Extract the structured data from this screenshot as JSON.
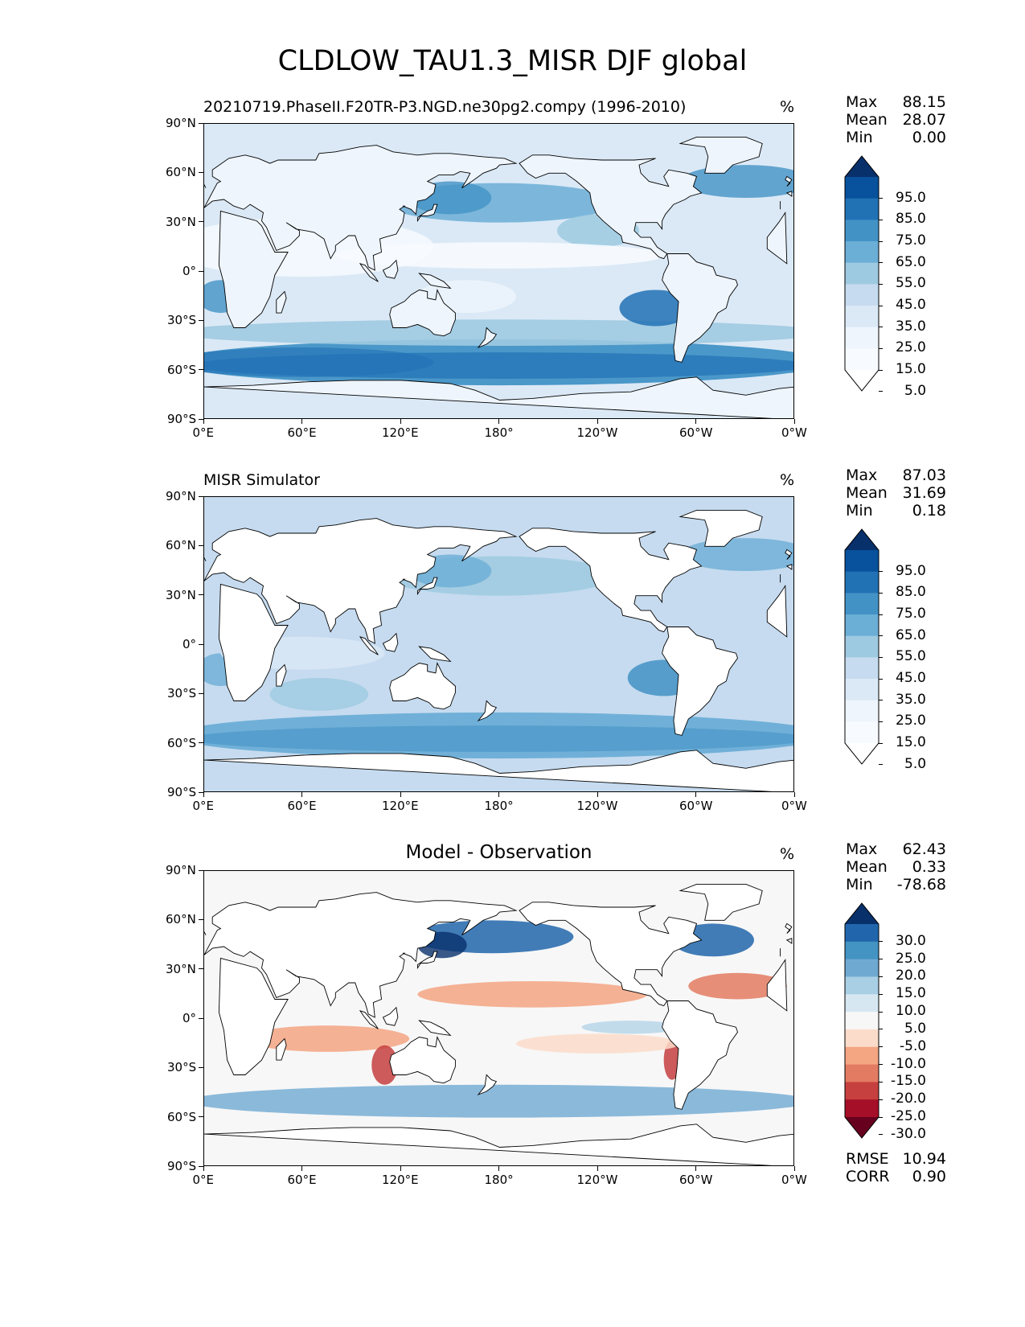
{
  "figure_title": "CLDLOW_TAU1.3_MISR DJF global",
  "panels": [
    {
      "id": "model",
      "title_left": "20210719.PhaseII.F20TR-P3.NGD.ne30pg2.compy (1996-2010)",
      "title_center": "",
      "units": "%",
      "stats": [
        {
          "label": "Max",
          "value": "88.15"
        },
        {
          "label": "Mean",
          "value": "28.07"
        },
        {
          "label": "Min",
          "value": "0.00"
        }
      ],
      "colorbar": {
        "ticks": [
          "95.0",
          "85.0",
          "75.0",
          "65.0",
          "55.0",
          "45.0",
          "35.0",
          "25.0",
          "15.0",
          "5.0"
        ],
        "colors": [
          "#08306b",
          "#08519c",
          "#2171b5",
          "#4292c6",
          "#6baed6",
          "#9ecae1",
          "#c6dbef",
          "#dbe9f6",
          "#eef5fc",
          "#f7fbff",
          "#ffffff"
        ]
      },
      "extra_stats": []
    },
    {
      "id": "obs",
      "title_left": "MISR Simulator",
      "title_center": "",
      "units": "%",
      "stats": [
        {
          "label": "Max",
          "value": "87.03"
        },
        {
          "label": "Mean",
          "value": "31.69"
        },
        {
          "label": "Min",
          "value": "0.18"
        }
      ],
      "colorbar": {
        "ticks": [
          "95.0",
          "85.0",
          "75.0",
          "65.0",
          "55.0",
          "45.0",
          "35.0",
          "25.0",
          "15.0",
          "5.0"
        ],
        "colors": [
          "#08306b",
          "#08519c",
          "#2171b5",
          "#4292c6",
          "#6baed6",
          "#9ecae1",
          "#c6dbef",
          "#dbe9f6",
          "#eef5fc",
          "#f7fbff",
          "#ffffff"
        ]
      },
      "extra_stats": []
    },
    {
      "id": "diff",
      "title_left": "",
      "title_center": "Model - Observation",
      "units": "%",
      "stats": [
        {
          "label": "Max",
          "value": "62.43"
        },
        {
          "label": "Mean",
          "value": "0.33"
        },
        {
          "label": "Min",
          "value": "-78.68"
        }
      ],
      "colorbar": {
        "ticks": [
          "30.0",
          "25.0",
          "20.0",
          "15.0",
          "10.0",
          "5.0",
          "-5.0",
          "-10.0",
          "-15.0",
          "-20.0",
          "-25.0",
          "-30.0"
        ],
        "colors": [
          "#08306b",
          "#2166ac",
          "#4393c3",
          "#6fa9d2",
          "#a9cfe5",
          "#d7e7f1",
          "#f7f7f7",
          "#fbdcca",
          "#f4a582",
          "#e37b62",
          "#c6403f",
          "#a50f27",
          "#67001f"
        ]
      },
      "extra_stats": [
        {
          "label": "RMSE",
          "value": "10.94"
        },
        {
          "label": "CORR",
          "value": "0.90"
        }
      ]
    }
  ],
  "axes": {
    "xticks": [
      "0°E",
      "60°E",
      "120°E",
      "180°",
      "120°W",
      "60°W",
      "0°W"
    ],
    "yticks": [
      "90°N",
      "60°N",
      "30°N",
      "0°",
      "30°S",
      "60°S",
      "90°S"
    ]
  },
  "chart_data": {
    "type": "heatmap",
    "title": "CLDLOW_TAU1.3_MISR DJF global",
    "projection": "PlateCarree",
    "x_range": [
      0,
      360
    ],
    "y_range": [
      -90,
      90
    ],
    "panels": [
      {
        "name": "20210719.PhaseII.F20TR-P3.NGD.ne30pg2.compy (1996-2010)",
        "units": "%",
        "max": 88.15,
        "mean": 28.07,
        "min": 0.0,
        "levels": [
          5,
          15,
          25,
          35,
          45,
          55,
          65,
          75,
          85,
          95
        ],
        "colormap": "Blues"
      },
      {
        "name": "MISR Simulator",
        "units": "%",
        "max": 87.03,
        "mean": 31.69,
        "min": 0.18,
        "levels": [
          5,
          15,
          25,
          35,
          45,
          55,
          65,
          75,
          85,
          95
        ],
        "colormap": "Blues"
      },
      {
        "name": "Model - Observation",
        "units": "%",
        "max": 62.43,
        "mean": 0.33,
        "min": -78.68,
        "levels": [
          -30,
          -25,
          -20,
          -15,
          -10,
          -5,
          5,
          10,
          15,
          20,
          25,
          30
        ],
        "colormap": "RdBu",
        "rmse": 10.94,
        "corr": 0.9
      }
    ]
  }
}
